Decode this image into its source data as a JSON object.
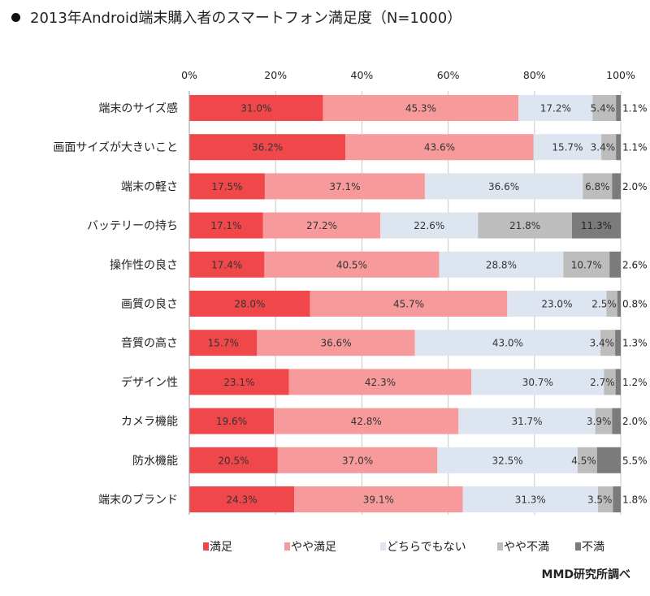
{
  "title": "2013年Android端末購入者のスマートフォン満足度（N=1000）",
  "source": "MMD研究所調べ",
  "chart_data": {
    "type": "bar",
    "orientation": "horizontal",
    "stacked": "percent",
    "title": "2013年Android端末購入者のスマートフォン満足度（N=1000）",
    "xlim": [
      0,
      100
    ],
    "x_ticks": [
      "0%",
      "20%",
      "40%",
      "60%",
      "80%",
      "100%"
    ],
    "grid": true,
    "legend_position": "bottom",
    "categories": [
      "端末のサイズ感",
      "画面サイズが大きいこと",
      "端末の軽さ",
      "バッテリーの持ち",
      "操作性の良さ",
      "画質の良さ",
      "音質の高さ",
      "デザイン性",
      "カメラ機能",
      "防水機能",
      "端末のブランド"
    ],
    "series": [
      {
        "name": "満足",
        "color": "#f0474b",
        "text_color": "#333333",
        "values": [
          31.0,
          36.2,
          17.5,
          17.1,
          17.4,
          28.0,
          15.7,
          23.1,
          19.6,
          20.5,
          24.3
        ]
      },
      {
        "name": "やや満足",
        "color": "#f79a9c",
        "text_color": "#333333",
        "values": [
          45.3,
          43.6,
          37.1,
          27.2,
          40.5,
          45.7,
          36.6,
          42.3,
          42.8,
          37.0,
          39.1
        ]
      },
      {
        "name": "どちらでもない",
        "color": "#dde5f1",
        "text_color": "#333333",
        "values": [
          17.2,
          15.7,
          36.6,
          22.6,
          28.8,
          23.0,
          43.0,
          30.7,
          31.7,
          32.5,
          31.3
        ]
      },
      {
        "name": "やや不満",
        "color": "#bdbdbd",
        "text_color": "#333333",
        "values": [
          5.4,
          3.4,
          6.8,
          21.8,
          10.7,
          2.5,
          3.4,
          2.7,
          3.9,
          4.5,
          3.5
        ]
      },
      {
        "name": "不満",
        "color": "#7b7b7b",
        "text_color": "#222222",
        "values": [
          1.1,
          1.1,
          2.0,
          11.3,
          2.6,
          0.8,
          1.3,
          1.2,
          2.0,
          5.5,
          1.8
        ]
      }
    ]
  }
}
